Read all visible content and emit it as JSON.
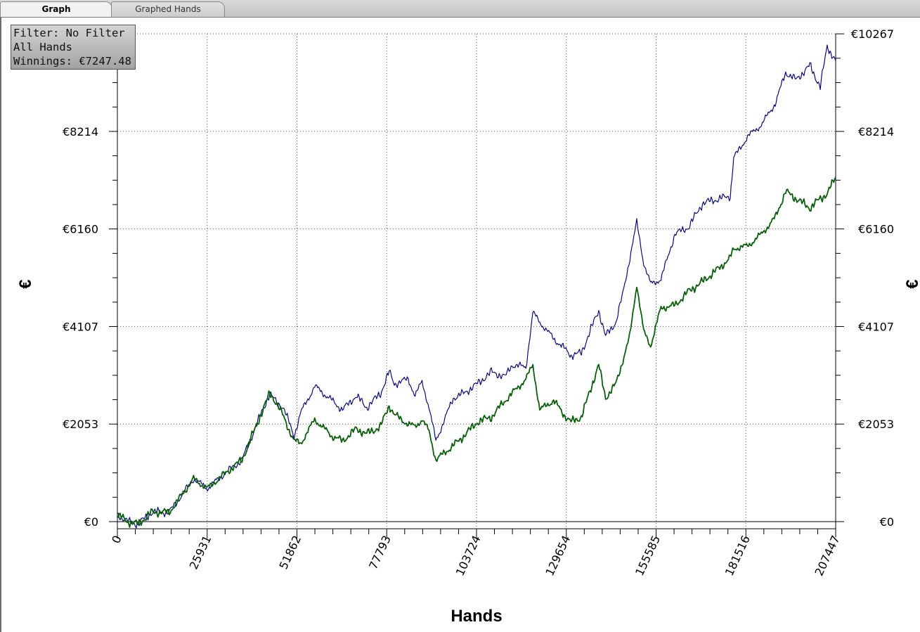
{
  "tabs": [
    {
      "label": "Graph",
      "active": true
    },
    {
      "label": "Graphed Hands",
      "active": false
    }
  ],
  "info_box": {
    "filter": "Filter: No Filter",
    "hands": "All Hands",
    "winnings": "Winnings: €7247.48"
  },
  "chart_data": {
    "type": "line",
    "xlabel": "Hands",
    "ylabel": "€",
    "xlim": [
      0,
      207447
    ],
    "ylim": [
      -150,
      10267
    ],
    "x_ticks": [
      0,
      25931,
      51862,
      77793,
      103724,
      129654,
      155585,
      181516,
      207447
    ],
    "y_ticks": [
      0,
      2053,
      4107,
      6160,
      8214,
      10267
    ],
    "y_tick_labels": [
      "€0",
      "€2053",
      "€4107",
      "€6160",
      "€8214",
      "€10267"
    ],
    "grid": true,
    "colors": {
      "series_1": "#0a0a78",
      "series_2": "#0b5e0b",
      "axis": "#000000",
      "grid": "#555555"
    },
    "series": [
      {
        "color": "#0a0a78",
        "x": [
          0,
          3000,
          6000,
          10000,
          15000,
          22000,
          26000,
          30000,
          36000,
          44000,
          46000,
          48000,
          51000,
          53000,
          57000,
          62000,
          65000,
          69000,
          72000,
          76000,
          78500,
          80000,
          84000,
          86000,
          88000,
          90000,
          92000,
          97000,
          100000,
          104000,
          108000,
          112000,
          114000,
          118000,
          120000,
          122000,
          126000,
          129000,
          131000,
          134000,
          139000,
          141000,
          144000,
          146000,
          148000,
          150000,
          152000,
          154000,
          157000,
          161000,
          165000,
          169000,
          174000,
          177000,
          178000,
          182000,
          186000,
          190000,
          193000,
          196000,
          200000,
          203000,
          205000,
          207447
        ],
        "y": [
          150,
          0,
          -50,
          200,
          200,
          900,
          700,
          950,
          1300,
          2700,
          2500,
          2400,
          1800,
          2300,
          2850,
          2550,
          2350,
          2650,
          2400,
          2700,
          3150,
          2900,
          3000,
          2650,
          2950,
          2400,
          1700,
          2600,
          2700,
          2900,
          3150,
          3050,
          3300,
          3250,
          4400,
          4200,
          3850,
          3650,
          3500,
          3550,
          4450,
          3900,
          4200,
          4800,
          5550,
          6300,
          5450,
          5000,
          5100,
          6050,
          6200,
          6700,
          6800,
          6850,
          7650,
          8100,
          8350,
          8800,
          9450,
          9300,
          9600,
          9150,
          10000,
          9700
        ]
      },
      {
        "color": "#0b5e0b",
        "x": [
          0,
          3000,
          6000,
          10000,
          15000,
          22000,
          26000,
          30000,
          36000,
          44000,
          46000,
          48000,
          51000,
          53000,
          57000,
          62000,
          65000,
          69000,
          72000,
          76000,
          78500,
          80000,
          84000,
          86000,
          88000,
          90000,
          92000,
          97000,
          100000,
          104000,
          108000,
          112000,
          114000,
          118000,
          120000,
          122000,
          126000,
          129000,
          131000,
          134000,
          139000,
          141000,
          144000,
          146000,
          148000,
          150000,
          152000,
          154000,
          157000,
          161000,
          165000,
          169000,
          174000,
          177000,
          178000,
          182000,
          186000,
          190000,
          193000,
          196000,
          200000,
          203000,
          205000,
          207447
        ],
        "y": [
          150,
          0,
          -50,
          200,
          200,
          900,
          700,
          950,
          1300,
          2700,
          2500,
          2200,
          1700,
          1650,
          2150,
          1800,
          1700,
          1950,
          1850,
          2000,
          2450,
          2250,
          2050,
          2000,
          2150,
          1900,
          1300,
          1600,
          1800,
          2100,
          2200,
          2550,
          2700,
          3000,
          3300,
          2350,
          2550,
          2250,
          2100,
          2200,
          3300,
          2600,
          2900,
          3400,
          3900,
          5000,
          4000,
          3700,
          4500,
          4550,
          4850,
          5050,
          5350,
          5550,
          5750,
          5800,
          6050,
          6400,
          6950,
          6800,
          6600,
          6800,
          6900,
          7250
        ]
      }
    ]
  }
}
